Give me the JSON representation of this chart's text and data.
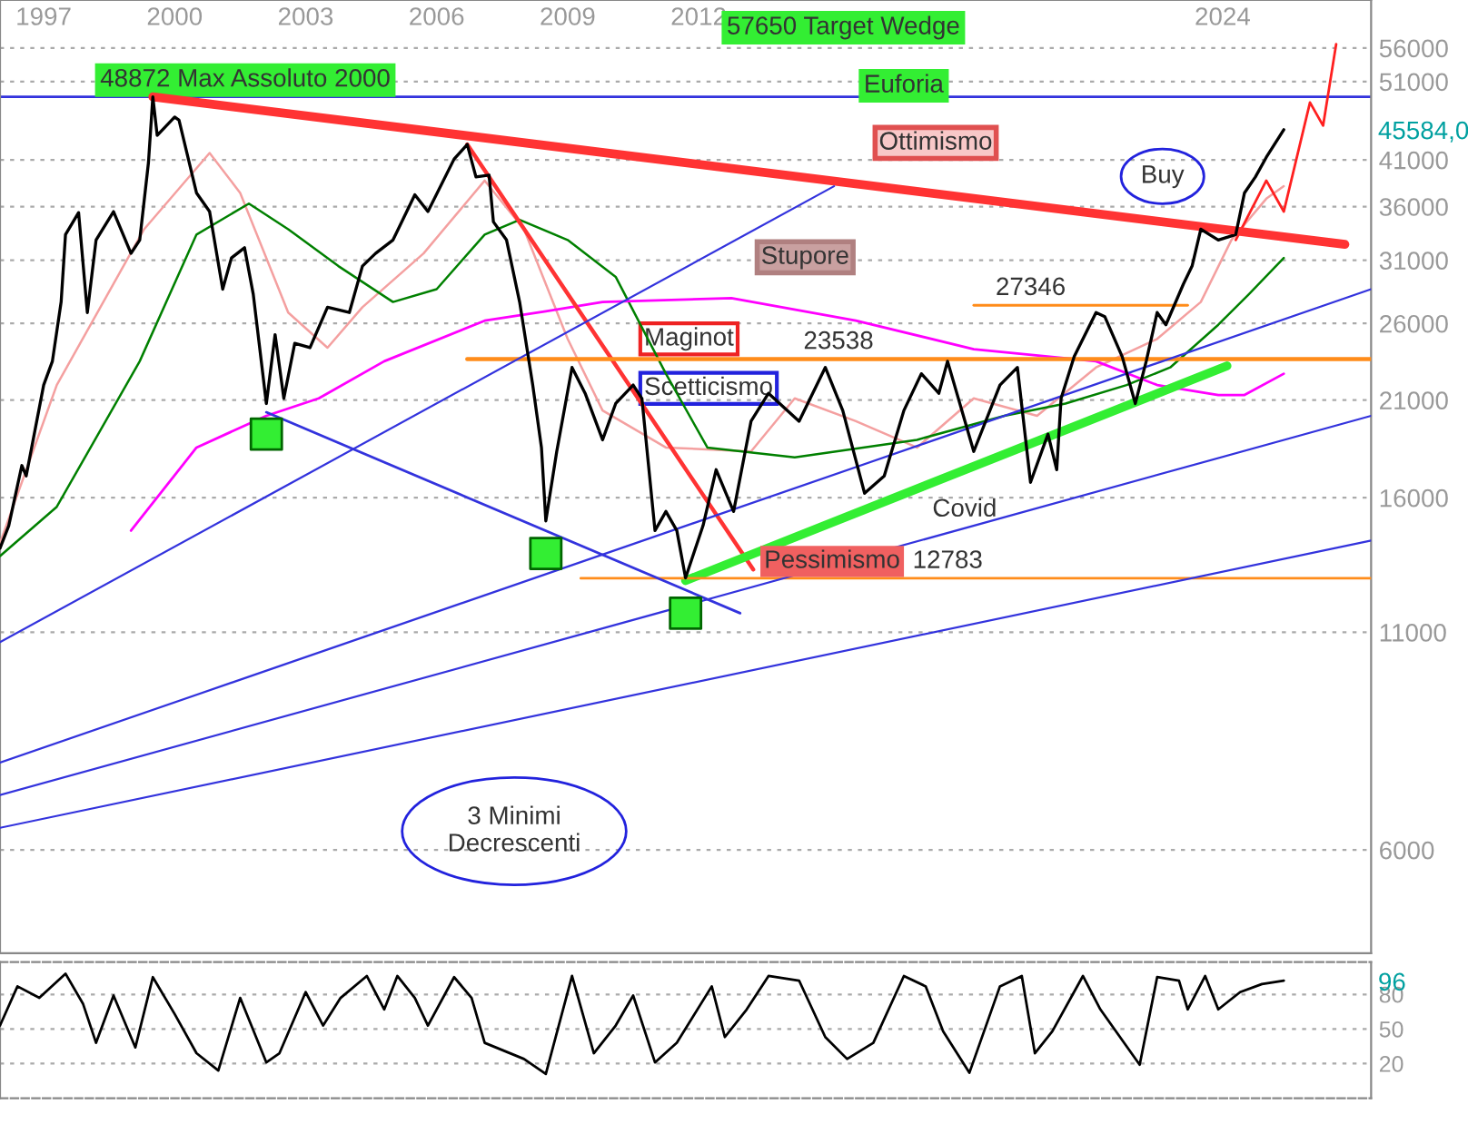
{
  "chart_data": [
    {
      "type": "line",
      "log": true,
      "grid": "y",
      "xlim": [
        1996.0,
        2027.4
      ],
      "ylim": [
        4500,
        64000
      ],
      "xticks": [
        1997,
        2000,
        2003,
        2006,
        2009,
        2012,
        2024
      ],
      "yticks": [
        6000,
        11000,
        16000,
        21000,
        26000,
        31000,
        36000,
        41000,
        51000,
        56000
      ],
      "series": [
        {
          "color": "#000000",
          "x": [
            1996.0,
            1996.2,
            1996.5,
            1996.6,
            1997.0,
            1997.2,
            1997.4,
            1997.5,
            1997.8,
            1998.0,
            1998.2,
            1998.6,
            1999.0,
            1999.2,
            1999.4,
            1999.5,
            1999.6,
            2000.0,
            2000.1,
            2000.5,
            2000.8,
            2001.1,
            2001.3,
            2001.6,
            2001.8,
            2002.1,
            2002.3,
            2002.5,
            2002.75,
            2003.1,
            2003.5,
            2004.0,
            2004.3,
            2004.6,
            2005.0,
            2005.5,
            2005.8,
            2006.4,
            2006.7,
            2006.9,
            2007.2,
            2007.3,
            2007.6,
            2007.9,
            2008.2,
            2008.4,
            2008.5,
            2008.75,
            2009.1,
            2009.4,
            2009.8,
            2010.1,
            2010.5,
            2010.7,
            2011.0,
            2011.25,
            2011.5,
            2011.7,
            2012.1,
            2012.4,
            2012.8,
            2013.2,
            2013.6,
            2014.3,
            2014.9,
            2015.3,
            2015.8,
            2016.25,
            2016.7,
            2017.1,
            2017.5,
            2017.7,
            2018.3,
            2018.9,
            2019.3,
            2019.6,
            2020.0,
            2020.2,
            2020.3,
            2020.6,
            2021.1,
            2021.3,
            2021.7,
            2022.0,
            2022.25,
            2022.5,
            2022.7,
            2023.1,
            2023.3,
            2023.5,
            2023.9,
            2024.3,
            2024.5,
            2024.75,
            2025.0,
            2025.4
          ],
          "values": [
            13900,
            14800,
            17500,
            17000,
            21900,
            23400,
            27600,
            33300,
            35400,
            26800,
            32800,
            35500,
            31600,
            32800,
            40700,
            48870,
            43900,
            46200,
            45800,
            37400,
            35500,
            28600,
            31200,
            32100,
            28200,
            20800,
            25200,
            21100,
            24600,
            24300,
            27200,
            26800,
            30500,
            31600,
            32800,
            37200,
            35500,
            41100,
            42800,
            39100,
            39300,
            34500,
            32800,
            27600,
            21900,
            18400,
            15000,
            18200,
            23000,
            21400,
            18800,
            20800,
            21900,
            21100,
            14600,
            15400,
            14600,
            12800,
            14800,
            17300,
            15400,
            19800,
            21400,
            19800,
            23000,
            20400,
            16200,
            17000,
            20400,
            22600,
            21400,
            23400,
            18200,
            21900,
            23000,
            16700,
            19100,
            17300,
            21100,
            23700,
            26800,
            26500,
            23700,
            20800,
            23400,
            26800,
            25900,
            29000,
            30500,
            33800,
            32800,
            33300,
            37400,
            39100,
            41300,
            44600
          ]
        },
        {
          "color": "#f4a0a0",
          "x": [
            1996.0,
            1997.3,
            1999.3,
            2000.8,
            2001.5,
            2002.6,
            2003.5,
            2004.3,
            2005.7,
            2007.1,
            2008.0,
            2009.0,
            2009.8,
            2011.25,
            2013.2,
            2014.2,
            2015.6,
            2017.0,
            2018.3,
            2019.75,
            2021.1,
            2022.5,
            2023.5,
            2024.2,
            2025.0,
            2025.4
          ],
          "values": [
            14100,
            21900,
            33800,
            41800,
            37400,
            26800,
            24300,
            27200,
            31600,
            38700,
            33800,
            24900,
            20400,
            18400,
            18200,
            21100,
            19800,
            18400,
            21100,
            20100,
            23000,
            24900,
            27600,
            32800,
            36800,
            38100
          ]
        },
        {
          "color": "#008000",
          "x": [
            1996.0,
            1997.3,
            1999.2,
            2000.5,
            2001.7,
            2002.6,
            2003.75,
            2005.0,
            2006.0,
            2007.1,
            2007.9,
            2009.0,
            2010.1,
            2011.25,
            2012.2,
            2014.2,
            2017.0,
            2019.0,
            2020.4,
            2021.8,
            2022.8,
            2023.9,
            2024.6,
            2025.4
          ],
          "values": [
            13600,
            15600,
            23400,
            33300,
            36300,
            33800,
            30500,
            27600,
            28600,
            33300,
            34700,
            32800,
            29600,
            22600,
            18400,
            17900,
            18800,
            20100,
            20800,
            21900,
            23000,
            25900,
            28200,
            31200
          ]
        },
        {
          "color": "#ff00ff",
          "x": [
            1999.0,
            2000.5,
            2002.1,
            2003.3,
            2004.8,
            2007.1,
            2008.5,
            2009.8,
            2012.75,
            2015.6,
            2018.3,
            2021.1,
            2022.5,
            2023.9,
            2024.5,
            2025.4
          ],
          "values": [
            14600,
            18400,
            20100,
            21100,
            23400,
            26200,
            26900,
            27600,
            27900,
            26200,
            24200,
            23400,
            21900,
            21300,
            21300,
            22600
          ]
        },
        {
          "color": "#ff2020",
          "x": [
            2024.3,
            2025.0,
            2025.4,
            2026.0,
            2026.3,
            2026.6
          ],
          "values": [
            32800,
            38700,
            35500,
            48100,
            45100,
            56600
          ]
        },
        {
          "color": "#ff3333",
          "x": [
            1999.5,
            2026.8
          ],
          "values": [
            48870,
            32400
          ]
        },
        {
          "color": "#ff3333",
          "x": [
            2006.7,
            2013.25
          ],
          "values": [
            42800,
            13100
          ]
        },
        {
          "color": "#33ee33",
          "x": [
            2011.7,
            2024.1
          ],
          "values": [
            12700,
            23100
          ]
        },
        {
          "color": "#ff8c1a",
          "x": [
            2006.7,
            2027.4
          ],
          "values": [
            23538,
            23538
          ]
        },
        {
          "color": "#ff8c1a",
          "x": [
            2018.3,
            2023.2
          ],
          "values": [
            27346,
            27346
          ]
        },
        {
          "color": "#ff8c1a",
          "x": [
            2009.3,
            2027.4
          ],
          "values": [
            12783,
            12783
          ]
        },
        {
          "color": "#3333dd",
          "x": [
            2002.1,
            2012.95
          ],
          "values": [
            20300,
            11600
          ]
        },
        {
          "color": "#3333dd",
          "x": [
            1996.0,
            2015.1
          ],
          "values": [
            10700,
            38100
          ]
        },
        {
          "color": "#3333dd",
          "x": [
            1996.0,
            2027.4
          ],
          "values": [
            7650,
            28600
          ]
        },
        {
          "color": "#3333dd",
          "x": [
            1996.0,
            2027.4
          ],
          "values": [
            6990,
            20100
          ]
        },
        {
          "color": "#3333dd",
          "x": [
            1996.0,
            2027.4
          ],
          "values": [
            6380,
            14200
          ]
        },
        {
          "type": "scatter",
          "marker": "square",
          "color": "#33ee33",
          "x": [
            2002.1,
            2008.5,
            2011.7
          ],
          "values": [
            19100,
            13700,
            11600
          ]
        }
      ],
      "ref_lines": [
        {
          "axis": "y",
          "value": 48872,
          "color": "#3333dd"
        }
      ],
      "annotations": [
        "48872 Max Assoluto 2000",
        "57650 Target Wedge",
        "Euforia",
        "Ottimismo",
        "Stupore",
        {
          "text": "Maginot",
          "x": 2010.75,
          "y": 24900
        },
        {
          "text": "23538",
          "x": 2014.4,
          "y": 23538
        },
        {
          "text": "Scetticismo",
          "x": 2010.75,
          "y": 21700
        },
        {
          "text": "27346",
          "x": 2018.8,
          "y": 27346
        },
        "Covid",
        {
          "text": "Pessimismo",
          "x": 2013.5,
          "y": 13400
        },
        {
          "text": "12783",
          "x": 2016.9,
          "y": 12783
        },
        "Buy",
        "3 Minimi\nDecrescenti",
        "45584,0"
      ]
    },
    {
      "type": "line",
      "grid": "y",
      "tick_labels": "y",
      "xlim": [
        1996.0,
        2027.4
      ],
      "ylim": [
        -10,
        108
      ],
      "yticks": [
        20,
        50,
        80
      ],
      "series": [
        {
          "color": "#000000",
          "x": [
            1996.0,
            1996.4,
            1996.9,
            1997.5,
            1997.9,
            1998.2,
            1998.6,
            1999.1,
            1999.5,
            2000.0,
            2000.5,
            2001.0,
            2001.5,
            2002.1,
            2002.4,
            2003.0,
            2003.4,
            2003.8,
            2004.4,
            2004.8,
            2005.1,
            2005.5,
            2005.8,
            2006.4,
            2006.8,
            2007.1,
            2008.0,
            2008.5,
            2009.1,
            2009.6,
            2010.1,
            2010.5,
            2011.0,
            2011.5,
            2012.3,
            2012.6,
            2013.1,
            2013.6,
            2014.3,
            2014.9,
            2015.4,
            2016.0,
            2016.7,
            2017.2,
            2017.6,
            2018.2,
            2018.9,
            2019.4,
            2019.7,
            2020.1,
            2020.8,
            2021.2,
            2022.1,
            2022.5,
            2023.0,
            2023.2,
            2023.6,
            2023.9,
            2024.4,
            2024.9,
            2025.4
          ],
          "values": [
            53,
            87,
            77,
            98,
            72,
            38,
            79,
            34,
            95,
            63,
            29,
            14,
            77,
            21,
            29,
            82,
            53,
            77,
            96,
            67,
            96,
            77,
            53,
            95,
            77,
            38,
            24,
            11,
            96,
            29,
            53,
            79,
            21,
            38,
            87,
            43,
            67,
            96,
            92,
            43,
            24,
            38,
            96,
            87,
            48,
            12,
            87,
            96,
            29,
            48,
            96,
            67,
            19,
            95,
            92,
            67,
            96,
            67,
            82,
            89,
            92
          ]
        }
      ],
      "annotations": [
        "96"
      ]
    }
  ]
}
